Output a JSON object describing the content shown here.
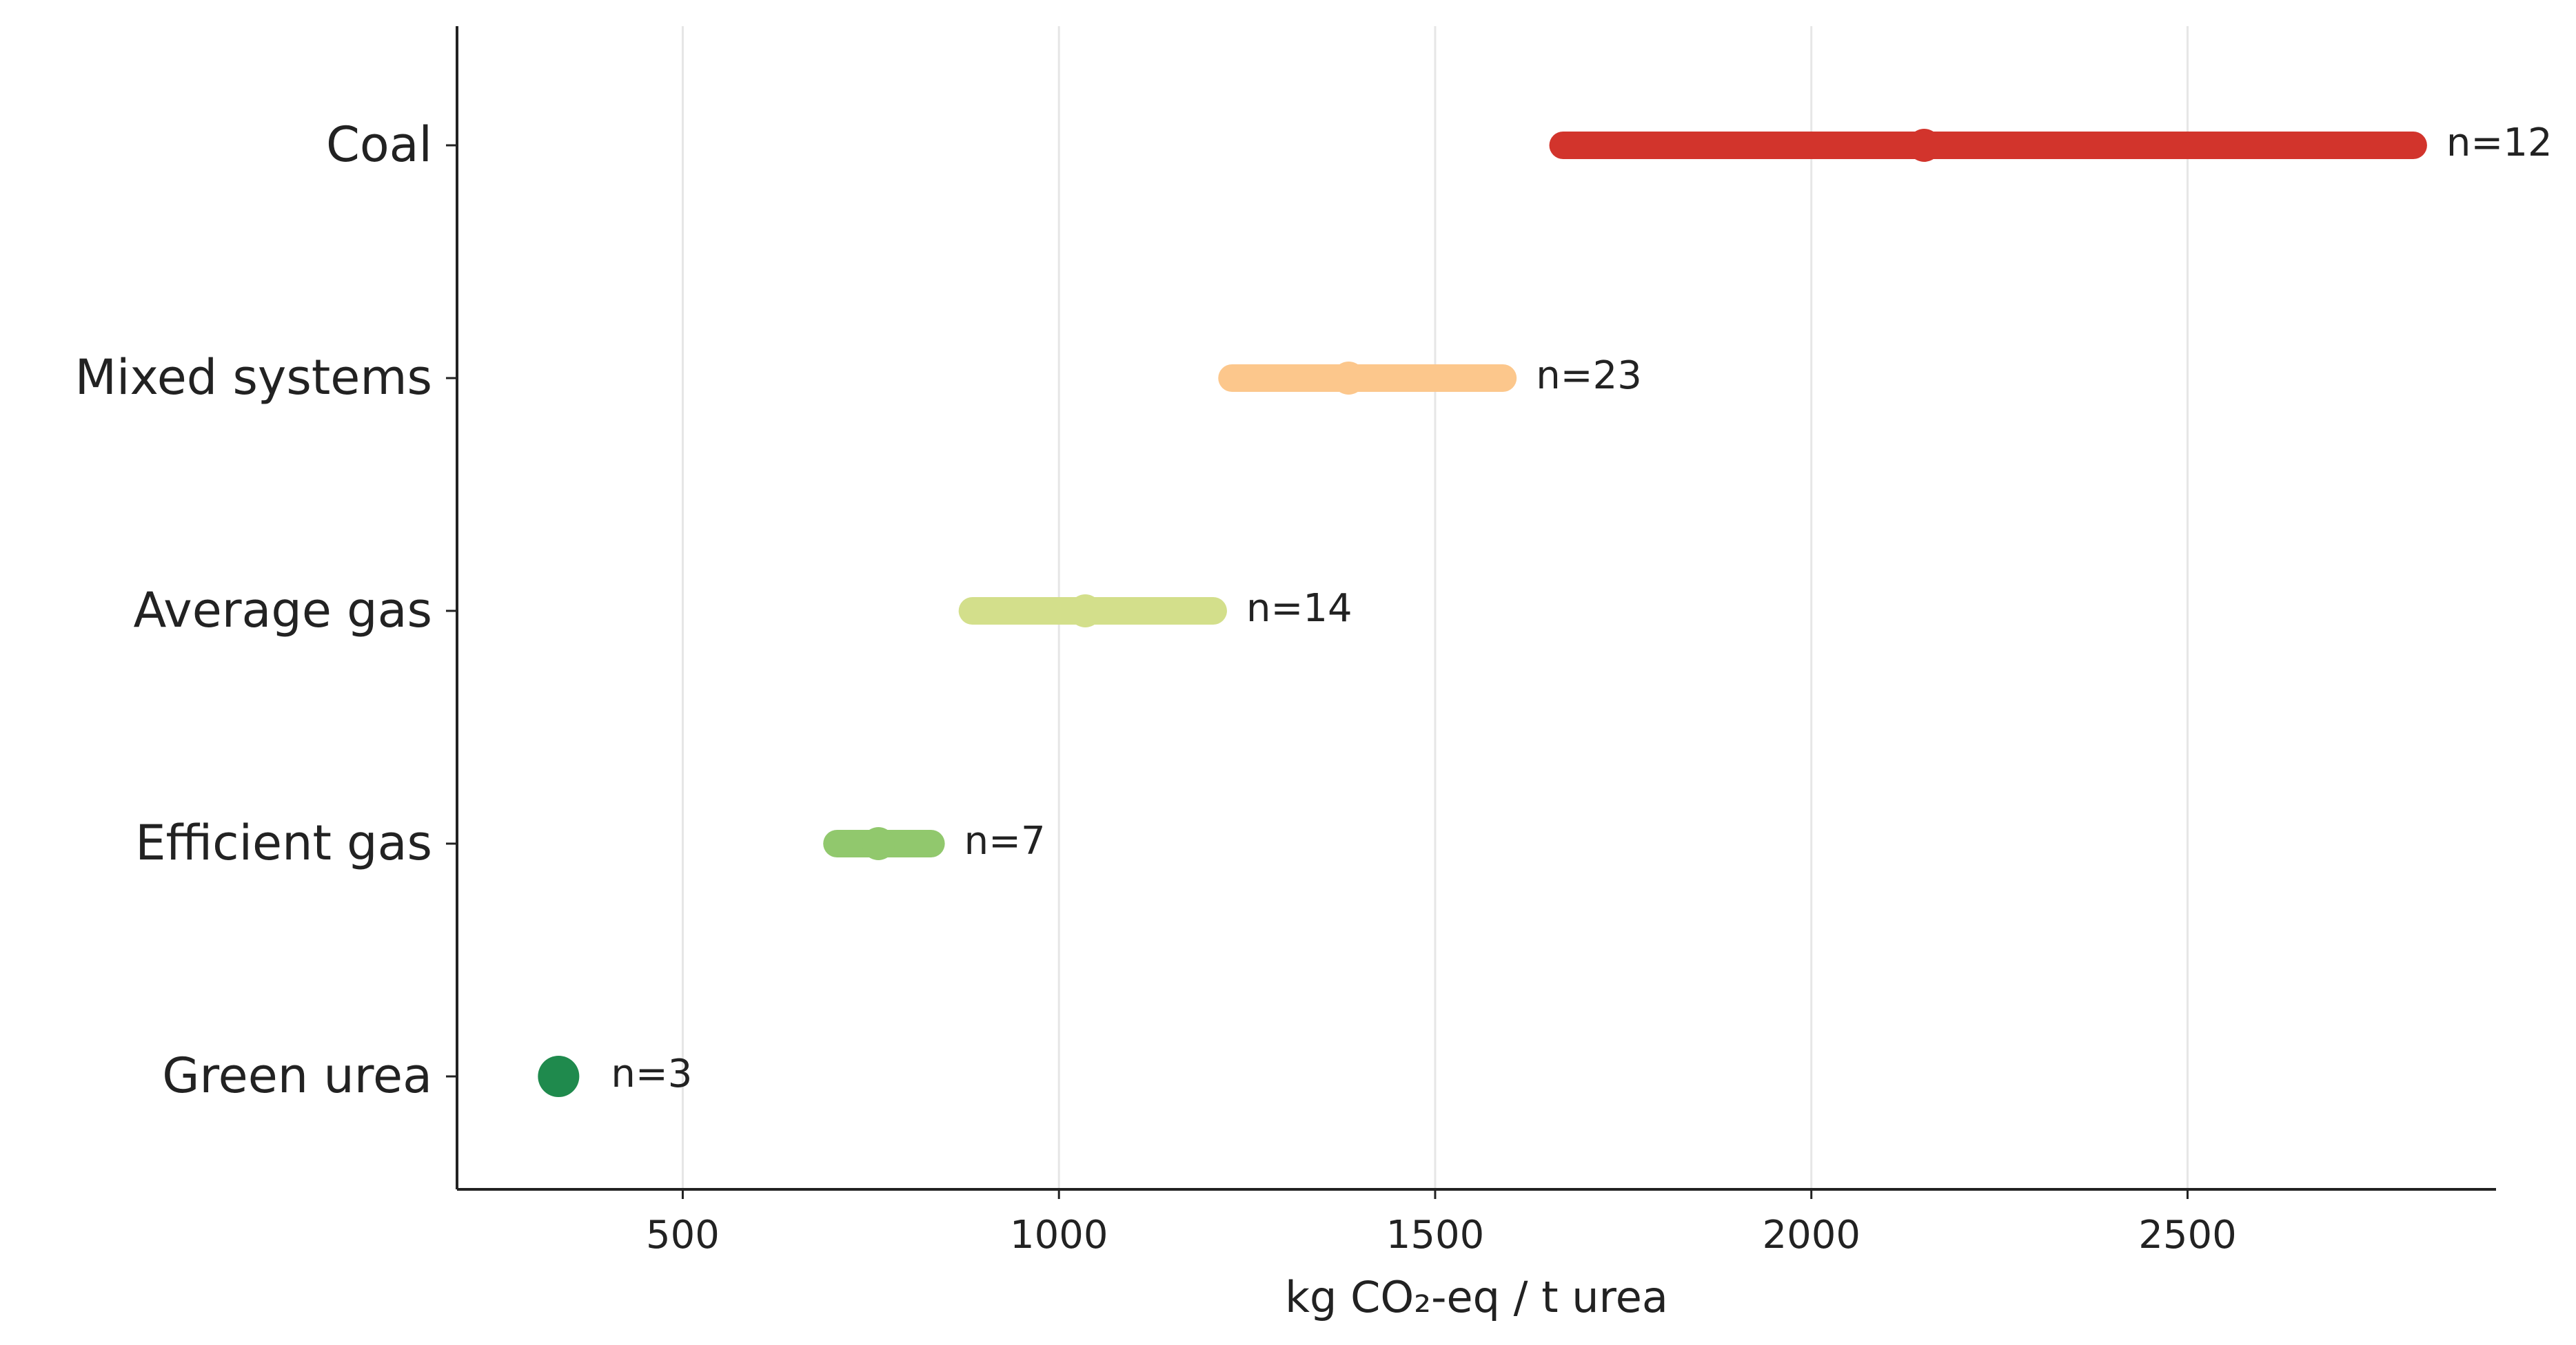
{
  "chart_data": {
    "type": "range",
    "x_label": "kg CO₂-eq / t urea",
    "categories": [
      "Coal",
      "Mixed systems",
      "Average gas",
      "Efficient gas",
      "Green urea"
    ],
    "min": [
      1670,
      1230,
      885,
      705,
      335
    ],
    "median": [
      2150,
      1385,
      1035,
      760,
      335
    ],
    "max": [
      2800,
      1590,
      1205,
      830,
      335
    ],
    "labels": [
      "n=12",
      "n=23",
      "n=14",
      "n=7",
      "n=3"
    ],
    "colors": [
      "#d2342c",
      "#fcc78c",
      "#d3df8b",
      "#91c86d",
      "#1f8a4d"
    ],
    "xlim": [
      200,
      2910
    ],
    "xticks": [
      500,
      1000,
      1500,
      2000,
      2500
    ],
    "grid": true
  }
}
